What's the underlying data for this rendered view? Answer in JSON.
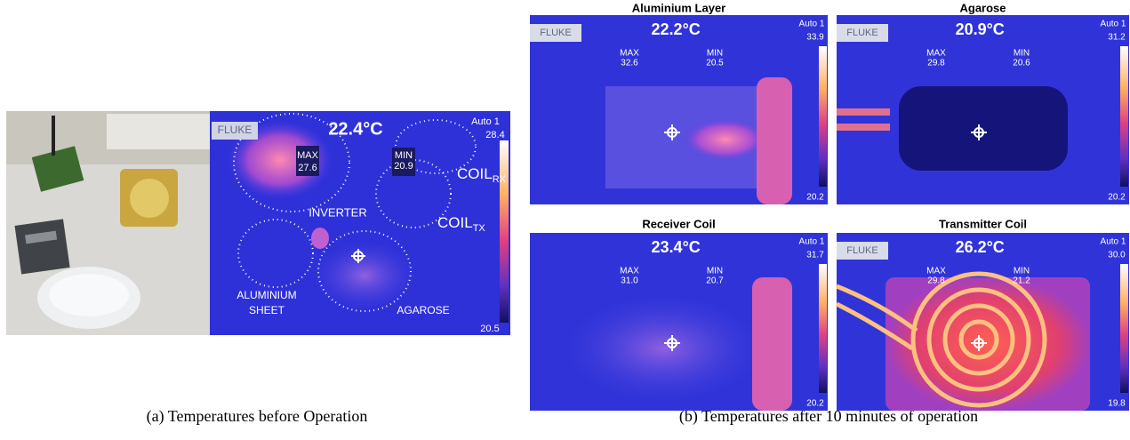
{
  "figure": {
    "panel_a": {
      "caption": "(a) Temperatures before Operation",
      "thermal": {
        "brand": "FLUKE",
        "temperature": "22.4°C",
        "mode": "Auto 1",
        "max_label": "MAX",
        "max": "27.6",
        "min_label": "MIN",
        "min": "20.9",
        "scale_top": "28.4",
        "scale_bottom": "20.5",
        "labels": {
          "inverter": "INVERTER",
          "coil_rx": "COIL",
          "coil_rx_sub": "RX",
          "coil_tx": "COIL",
          "coil_tx_sub": "TX",
          "aluminium_line1": "ALUMINIUM",
          "aluminium_line2": "SHEET",
          "agarose": "AGAROSE"
        }
      }
    },
    "panel_b": {
      "caption": "(b) Temperatures after 10 minutes of operation",
      "images": [
        {
          "title": "Aluminium Layer",
          "brand": "FLUKE",
          "temperature": "22.2°C",
          "mode": "Auto 1",
          "max_label": "MAX",
          "max": "32.6",
          "min_label": "MIN",
          "min": "20.5",
          "scale_top": "33.9",
          "scale_bottom": "20.2"
        },
        {
          "title": "Agarose",
          "brand": "FLUKE",
          "temperature": "20.9°C",
          "mode": "Auto 1",
          "max_label": "MAX",
          "max": "29.8",
          "min_label": "MIN",
          "min": "20.6",
          "scale_top": "31.2",
          "scale_bottom": "20.2"
        },
        {
          "title": "Receiver Coil",
          "temperature": "23.4°C",
          "mode": "Auto 1",
          "max_label": "MAX",
          "max": "31.0",
          "min_label": "MIN",
          "min": "20.7",
          "scale_top": "31.7",
          "scale_bottom": "20.2"
        },
        {
          "title": "Transmitter Coil",
          "brand": "FLUKE",
          "temperature": "26.2°C",
          "mode": "Auto 1",
          "max_label": "MAX",
          "max": "29.8",
          "min_label": "MIN",
          "min": "21.2",
          "scale_top": "30.0",
          "scale_bottom": "19.8"
        }
      ]
    }
  }
}
